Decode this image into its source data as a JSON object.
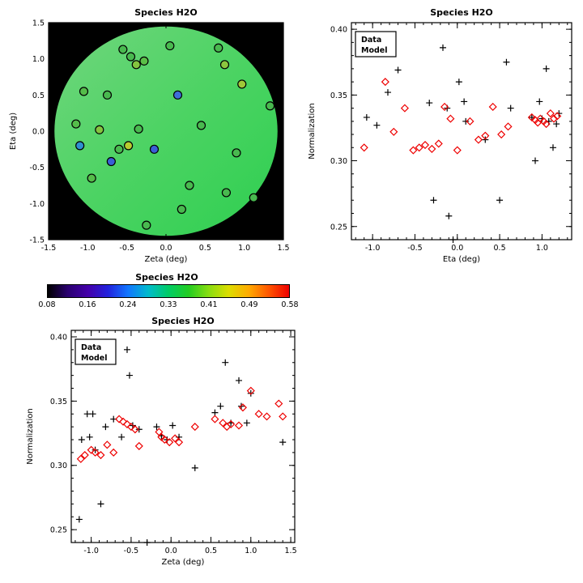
{
  "page": {
    "background": "#ffffff"
  },
  "chart_data": [
    {
      "id": "map",
      "type": "scatter_map",
      "title": "Species H2O",
      "xlabel": "Zeta (deg)",
      "ylabel": "Eta (deg)",
      "xlim": [
        -1.5,
        1.5
      ],
      "ylim": [
        -1.5,
        1.5
      ],
      "xminor": 0.1,
      "yminor": 0.1,
      "xticks": [
        {
          "v": -1.5,
          "t": "-1.5"
        },
        {
          "v": -1.0,
          "t": "-1.0"
        },
        {
          "v": -0.5,
          "t": "-0.5"
        },
        {
          "v": 0.0,
          "t": "0.0"
        },
        {
          "v": 0.5,
          "t": "0.5"
        },
        {
          "v": 1.0,
          "t": "1.0"
        },
        {
          "v": 1.5,
          "t": "1.5"
        }
      ],
      "yticks": [
        {
          "v": -1.5,
          "t": "-1.5"
        },
        {
          "v": -1.0,
          "t": "-1.0"
        },
        {
          "v": -0.5,
          "t": "-0.5"
        },
        {
          "v": 0.0,
          "t": "0.0"
        },
        {
          "v": 0.5,
          "t": "0.5"
        },
        {
          "v": 1.0,
          "t": "1.0"
        },
        {
          "v": 1.5,
          "t": "1.5"
        }
      ],
      "background": "#000000",
      "ellipse_gradient": [
        "#70d67d",
        "#4cd363",
        "#2ecf50"
      ],
      "points": [
        {
          "x": -0.55,
          "y": 1.13,
          "c": "#49b94f"
        },
        {
          "x": -0.45,
          "y": 1.03,
          "c": "#49b94f"
        },
        {
          "x": -0.38,
          "y": 0.92,
          "c": "#84c43f"
        },
        {
          "x": -0.28,
          "y": 0.97,
          "c": "#5bbf48"
        },
        {
          "x": 0.05,
          "y": 1.18,
          "c": "#49b94f"
        },
        {
          "x": 0.67,
          "y": 1.15,
          "c": "#49b94f"
        },
        {
          "x": 0.75,
          "y": 0.92,
          "c": "#8cc63f"
        },
        {
          "x": 0.97,
          "y": 0.65,
          "c": "#a0c838"
        },
        {
          "x": -1.05,
          "y": 0.55,
          "c": "#55bc4a"
        },
        {
          "x": -0.75,
          "y": 0.5,
          "c": "#49b94f"
        },
        {
          "x": 0.15,
          "y": 0.5,
          "c": "#3f6fd8"
        },
        {
          "x": 1.33,
          "y": 0.35,
          "c": "#49b94f"
        },
        {
          "x": -1.15,
          "y": 0.1,
          "c": "#55bc4a"
        },
        {
          "x": -0.85,
          "y": 0.02,
          "c": "#84c43f"
        },
        {
          "x": -0.35,
          "y": 0.03,
          "c": "#49b94f"
        },
        {
          "x": 0.45,
          "y": 0.08,
          "c": "#49b94f"
        },
        {
          "x": -1.1,
          "y": -0.2,
          "c": "#2f8fd0"
        },
        {
          "x": -0.6,
          "y": -0.25,
          "c": "#49b94f"
        },
        {
          "x": -0.48,
          "y": -0.2,
          "c": "#b8cc30"
        },
        {
          "x": -0.15,
          "y": -0.25,
          "c": "#3a5fd6"
        },
        {
          "x": -0.7,
          "y": -0.42,
          "c": "#3a5fd6"
        },
        {
          "x": 0.9,
          "y": -0.3,
          "c": "#49b94f"
        },
        {
          "x": -0.95,
          "y": -0.65,
          "c": "#55bc4a"
        },
        {
          "x": 0.3,
          "y": -0.75,
          "c": "#49b94f"
        },
        {
          "x": 0.77,
          "y": -0.85,
          "c": "#49b94f"
        },
        {
          "x": 1.12,
          "y": -0.92,
          "c": "#49b94f"
        },
        {
          "x": 0.2,
          "y": -1.08,
          "c": "#49b94f"
        },
        {
          "x": -0.25,
          "y": -1.3,
          "c": "#49b94f"
        }
      ]
    },
    {
      "id": "colorbar",
      "type": "colorbar",
      "title": "Species H2O",
      "labels": [
        "0.08",
        "0.16",
        "0.24",
        "0.33",
        "0.41",
        "0.49",
        "0.58"
      ],
      "range": [
        0.08,
        0.58
      ],
      "gradient": [
        "#000000",
        "#2a0070",
        "#4400aa",
        "#2222dd",
        "#1177ff",
        "#00bbcc",
        "#00cc66",
        "#22cc22",
        "#88dd11",
        "#dddd00",
        "#ffaa00",
        "#ff5500",
        "#ee0000"
      ]
    },
    {
      "id": "eta",
      "type": "scatter",
      "title": "Species H2O",
      "xlabel": "Eta (deg)",
      "ylabel": "Normalization",
      "xlim": [
        -1.25,
        1.35
      ],
      "ylim": [
        0.24,
        0.405
      ],
      "xminor": 0.1,
      "yminor": 0.01,
      "xticks": [
        {
          "v": -1.0,
          "t": "-1.0"
        },
        {
          "v": -0.5,
          "t": "-0.5"
        },
        {
          "v": 0.0,
          "t": "0.0"
        },
        {
          "v": 0.5,
          "t": "0.5"
        },
        {
          "v": 1.0,
          "t": "1.0"
        }
      ],
      "yticks": [
        {
          "v": 0.25,
          "t": "0.25"
        },
        {
          "v": 0.3,
          "t": "0.30"
        },
        {
          "v": 0.35,
          "t": "0.35"
        },
        {
          "v": 0.4,
          "t": "0.40"
        }
      ],
      "legend": [
        {
          "label": "Data",
          "color": "#000000"
        },
        {
          "label": "Model",
          "color": "#ee0000"
        }
      ],
      "series": [
        {
          "name": "Data",
          "marker": "plus",
          "color": "#000000",
          "points": [
            [
              -1.07,
              0.333
            ],
            [
              -0.95,
              0.327
            ],
            [
              -0.82,
              0.352
            ],
            [
              -0.7,
              0.369
            ],
            [
              -0.33,
              0.344
            ],
            [
              -0.28,
              0.27
            ],
            [
              -0.17,
              0.386
            ],
            [
              -0.12,
              0.34
            ],
            [
              -0.1,
              0.258
            ],
            [
              -0.05,
              0.24
            ],
            [
              0.02,
              0.36
            ],
            [
              0.08,
              0.345
            ],
            [
              0.1,
              0.33
            ],
            [
              0.33,
              0.316
            ],
            [
              0.5,
              0.27
            ],
            [
              0.58,
              0.375
            ],
            [
              0.63,
              0.34
            ],
            [
              0.88,
              0.333
            ],
            [
              0.92,
              0.3
            ],
            [
              0.97,
              0.345
            ],
            [
              1.0,
              0.332
            ],
            [
              1.05,
              0.37
            ],
            [
              1.08,
              0.33
            ],
            [
              1.13,
              0.31
            ],
            [
              1.17,
              0.328
            ],
            [
              1.2,
              0.336
            ]
          ]
        },
        {
          "name": "Model",
          "marker": "diamond",
          "color": "#ee0000",
          "points": [
            [
              -1.1,
              0.31
            ],
            [
              -0.85,
              0.36
            ],
            [
              -0.75,
              0.322
            ],
            [
              -0.62,
              0.34
            ],
            [
              -0.52,
              0.308
            ],
            [
              -0.45,
              0.31
            ],
            [
              -0.38,
              0.312
            ],
            [
              -0.3,
              0.309
            ],
            [
              -0.22,
              0.313
            ],
            [
              -0.15,
              0.341
            ],
            [
              -0.08,
              0.332
            ],
            [
              0.0,
              0.308
            ],
            [
              0.15,
              0.33
            ],
            [
              0.25,
              0.316
            ],
            [
              0.33,
              0.319
            ],
            [
              0.42,
              0.341
            ],
            [
              0.52,
              0.32
            ],
            [
              0.6,
              0.326
            ],
            [
              0.88,
              0.333
            ],
            [
              0.92,
              0.331
            ],
            [
              0.95,
              0.329
            ],
            [
              0.98,
              0.332
            ],
            [
              1.02,
              0.33
            ],
            [
              1.05,
              0.328
            ],
            [
              1.1,
              0.336
            ],
            [
              1.14,
              0.332
            ],
            [
              1.18,
              0.334
            ]
          ]
        }
      ]
    },
    {
      "id": "zeta",
      "type": "scatter",
      "title": "Species H2O",
      "xlabel": "Zeta (deg)",
      "ylabel": "Normalization",
      "xlim": [
        -1.25,
        1.55
      ],
      "ylim": [
        0.24,
        0.405
      ],
      "xminor": 0.1,
      "yminor": 0.01,
      "xticks": [
        {
          "v": -1.0,
          "t": "-1.0"
        },
        {
          "v": -0.5,
          "t": "-0.5"
        },
        {
          "v": 0.0,
          "t": "0.0"
        },
        {
          "v": 0.5,
          "t": "0.5"
        },
        {
          "v": 1.0,
          "t": "1.0"
        },
        {
          "v": 1.5,
          "t": "1.5"
        }
      ],
      "yticks": [
        {
          "v": 0.25,
          "t": "0.25"
        },
        {
          "v": 0.3,
          "t": "0.30"
        },
        {
          "v": 0.35,
          "t": "0.35"
        },
        {
          "v": 0.4,
          "t": "0.40"
        }
      ],
      "legend": [
        {
          "label": "Data",
          "color": "#000000"
        },
        {
          "label": "Model",
          "color": "#ee0000"
        }
      ],
      "series": [
        {
          "name": "Data",
          "marker": "plus",
          "color": "#000000",
          "points": [
            [
              -1.15,
              0.258
            ],
            [
              -1.12,
              0.32
            ],
            [
              -1.05,
              0.34
            ],
            [
              -1.02,
              0.322
            ],
            [
              -0.98,
              0.34
            ],
            [
              -0.95,
              0.312
            ],
            [
              -0.88,
              0.27
            ],
            [
              -0.82,
              0.33
            ],
            [
              -0.72,
              0.336
            ],
            [
              -0.62,
              0.322
            ],
            [
              -0.55,
              0.39
            ],
            [
              -0.52,
              0.37
            ],
            [
              -0.48,
              0.331
            ],
            [
              -0.4,
              0.328
            ],
            [
              -0.3,
              0.24
            ],
            [
              -0.18,
              0.33
            ],
            [
              -0.12,
              0.323
            ],
            [
              -0.05,
              0.32
            ],
            [
              0.02,
              0.331
            ],
            [
              0.1,
              0.322
            ],
            [
              0.3,
              0.298
            ],
            [
              0.55,
              0.341
            ],
            [
              0.62,
              0.346
            ],
            [
              0.68,
              0.38
            ],
            [
              0.75,
              0.333
            ],
            [
              0.85,
              0.366
            ],
            [
              0.88,
              0.346
            ],
            [
              0.95,
              0.333
            ],
            [
              1.0,
              0.356
            ],
            [
              1.4,
              0.318
            ]
          ]
        },
        {
          "name": "Model",
          "marker": "diamond",
          "color": "#ee0000",
          "points": [
            [
              -1.13,
              0.305
            ],
            [
              -1.08,
              0.308
            ],
            [
              -1.0,
              0.312
            ],
            [
              -0.95,
              0.31
            ],
            [
              -0.88,
              0.308
            ],
            [
              -0.8,
              0.316
            ],
            [
              -0.72,
              0.31
            ],
            [
              -0.65,
              0.336
            ],
            [
              -0.6,
              0.334
            ],
            [
              -0.55,
              0.332
            ],
            [
              -0.5,
              0.33
            ],
            [
              -0.45,
              0.328
            ],
            [
              -0.4,
              0.315
            ],
            [
              -0.15,
              0.326
            ],
            [
              -0.12,
              0.322
            ],
            [
              -0.08,
              0.32
            ],
            [
              -0.02,
              0.318
            ],
            [
              0.05,
              0.321
            ],
            [
              0.1,
              0.318
            ],
            [
              0.3,
              0.33
            ],
            [
              0.55,
              0.336
            ],
            [
              0.65,
              0.333
            ],
            [
              0.7,
              0.33
            ],
            [
              0.75,
              0.332
            ],
            [
              0.85,
              0.331
            ],
            [
              0.9,
              0.345
            ],
            [
              1.0,
              0.358
            ],
            [
              1.1,
              0.34
            ],
            [
              1.2,
              0.338
            ],
            [
              1.35,
              0.348
            ],
            [
              1.4,
              0.338
            ]
          ]
        }
      ]
    }
  ]
}
